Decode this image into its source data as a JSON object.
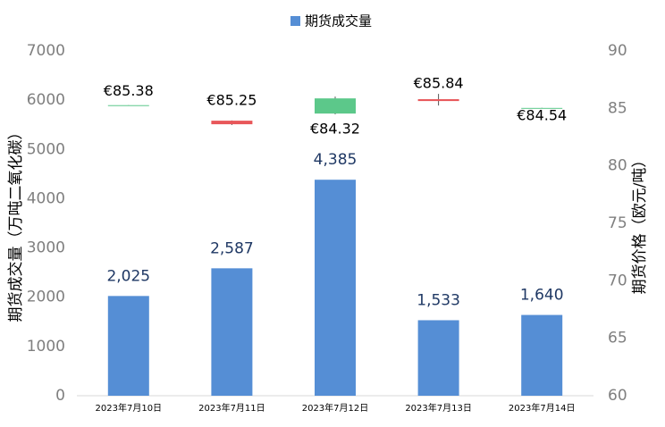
{
  "chart_data": {
    "type": "bar",
    "categories": [
      "2023年7月10日",
      "2023年7月11日",
      "2023年7月12日",
      "2023年7月13日",
      "2023年7月14日"
    ],
    "series": [
      {
        "name": "期货成交量",
        "color": "#558ed5",
        "values": [
          2025,
          2587,
          4385,
          1533,
          1640
        ],
        "value_labels": [
          "2,025",
          "2,587",
          "4,385",
          "1,533",
          "1,640"
        ]
      },
      {
        "type": "candlestick",
        "axis": "y2",
        "up_color": "#5cc88a",
        "down_color": "#e8575a",
        "open": [
          85.25,
          83.93,
          84.55,
          85.8,
          85.0
        ],
        "high": [
          85.28,
          83.95,
          86.03,
          86.26,
          85.05
        ],
        "low": [
          85.24,
          83.55,
          84.48,
          85.25,
          84.99
        ],
        "close": [
          85.28,
          83.62,
          85.87,
          85.64,
          85.04
        ]
      }
    ],
    "annotations": [
      "€85.38",
      "€85.25",
      "€84.32",
      "€85.84",
      "€84.54"
    ],
    "ylabel": "期货成交量（万吨二氧化碳）",
    "y2label": "期货价格（欧元/吨）",
    "ylim": [
      0,
      7000
    ],
    "yticks": [
      0,
      1000,
      2000,
      3000,
      4000,
      5000,
      6000,
      7000
    ],
    "y2lim": [
      60,
      90
    ],
    "y2ticks": [
      60,
      65,
      70,
      75,
      80,
      85,
      90
    ],
    "legend": "top"
  }
}
